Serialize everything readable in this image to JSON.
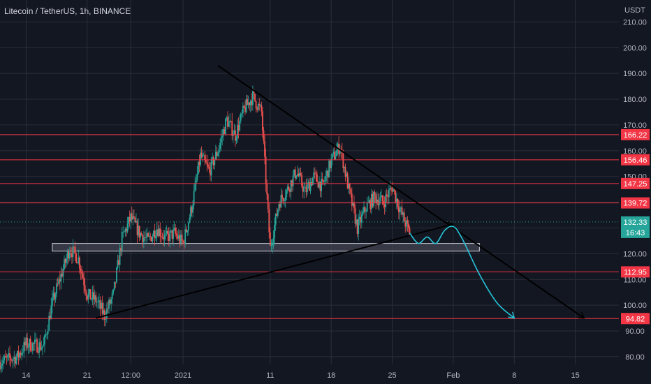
{
  "header": {
    "symbol_title": "Litecoin / TetherUS, 1h, BINANCE",
    "currency": "USDT"
  },
  "colors": {
    "background": "#131722",
    "grid": "#2a2e39",
    "candle_up": "#26a69a",
    "candle_down": "#ef5350",
    "level_line": "#f23645",
    "trend_line": "#000000",
    "projection": "#26c6da",
    "current_price": "#26a69a",
    "zone_fill": "#434651"
  },
  "chart_data": {
    "type": "candlestick",
    "timeframe": "1h",
    "y_axis": {
      "min": 77,
      "max": 212,
      "ticks": [
        80,
        90,
        100,
        110,
        120,
        130,
        140,
        150,
        160,
        170,
        180,
        190,
        200,
        210
      ],
      "tick_labels": [
        "80.00",
        "90.00",
        "100.00",
        "110.00",
        "120.00",
        "130.00",
        "140.00",
        "150.00",
        "160.00",
        "170.00",
        "180.00",
        "190.00",
        "200.00",
        "210.00"
      ]
    },
    "x_axis": {
      "start_date": "2020-12-11",
      "end_date": "2021-02-20",
      "ticks": [
        {
          "label": "14",
          "date": "2020-12-14"
        },
        {
          "label": "21",
          "date": "2020-12-21"
        },
        {
          "label": "12:00",
          "date": "2020-12-26"
        },
        {
          "label": "2021",
          "date": "2021-01-01"
        },
        {
          "label": "11",
          "date": "2021-01-11"
        },
        {
          "label": "18",
          "date": "2021-01-18"
        },
        {
          "label": "25",
          "date": "2021-01-25"
        },
        {
          "label": "Feb",
          "date": "2021-02-01"
        },
        {
          "label": "8",
          "date": "2021-02-08"
        },
        {
          "label": "15",
          "date": "2021-02-15"
        }
      ]
    },
    "price_path": [
      [
        "2020-12-11",
        78
      ],
      [
        "2020-12-13",
        80
      ],
      [
        "2020-12-14",
        85
      ],
      [
        "2020-12-16",
        84
      ],
      [
        "2020-12-17",
        101
      ],
      [
        "2020-12-19",
        122
      ],
      [
        "2020-12-20",
        118
      ],
      [
        "2020-12-21",
        104
      ],
      [
        "2020-12-22",
        102
      ],
      [
        "2020-12-23",
        96
      ],
      [
        "2020-12-24",
        104
      ],
      [
        "2020-12-25",
        126
      ],
      [
        "2020-12-26",
        134
      ],
      [
        "2020-12-27",
        128
      ],
      [
        "2020-12-28",
        125
      ],
      [
        "2020-12-29",
        130
      ],
      [
        "2020-12-30",
        126
      ],
      [
        "2020-12-31",
        128
      ],
      [
        "2021-01-01",
        124
      ],
      [
        "2021-01-02",
        138
      ],
      [
        "2021-01-03",
        158
      ],
      [
        "2021-01-04",
        152
      ],
      [
        "2021-01-05",
        160
      ],
      [
        "2021-01-06",
        172
      ],
      [
        "2021-01-07",
        166
      ],
      [
        "2021-01-08",
        176
      ],
      [
        "2021-01-09",
        181
      ],
      [
        "2021-01-10",
        175
      ],
      [
        "2021-01-11",
        122
      ],
      [
        "2021-01-12",
        140
      ],
      [
        "2021-01-13",
        145
      ],
      [
        "2021-01-14",
        152
      ],
      [
        "2021-01-15",
        144
      ],
      [
        "2021-01-16",
        150
      ],
      [
        "2021-01-17",
        146
      ],
      [
        "2021-01-18",
        156
      ],
      [
        "2021-01-19",
        162
      ],
      [
        "2021-01-20",
        145
      ],
      [
        "2021-01-21",
        130
      ],
      [
        "2021-01-22",
        138
      ],
      [
        "2021-01-23",
        142
      ],
      [
        "2021-01-24",
        140
      ],
      [
        "2021-01-25",
        146
      ],
      [
        "2021-01-26",
        136
      ],
      [
        "2021-01-27",
        128
      ]
    ],
    "horizontal_levels": [
      {
        "value": 166.22,
        "label": "166.22"
      },
      {
        "value": 156.46,
        "label": "156.46"
      },
      {
        "value": 147.25,
        "label": "147.25"
      },
      {
        "value": 139.72,
        "label": "139.72"
      },
      {
        "value": 112.95,
        "label": "112.95"
      },
      {
        "value": 94.82,
        "label": "94.82"
      }
    ],
    "current_price": {
      "value": 132.33,
      "label": "132.33",
      "countdown": "16:43"
    },
    "support_zone": {
      "from": "2020-12-17",
      "to": "2021-02-04",
      "low": 121,
      "high": 124
    },
    "trend_lines": [
      {
        "from": [
          "2021-01-05",
          193
        ],
        "to": [
          "2021-02-16",
          95
        ]
      },
      {
        "from": [
          "2020-12-22",
          95
        ],
        "to": [
          "2021-02-01",
          131.5
        ]
      }
    ],
    "projection_path": [
      [
        "2021-01-27",
        128
      ],
      [
        "2021-01-28",
        124
      ],
      [
        "2021-01-29",
        126.5
      ],
      [
        "2021-01-30",
        124
      ],
      [
        "2021-01-31",
        129
      ],
      [
        "2021-02-01",
        130.5
      ],
      [
        "2021-02-02",
        126
      ],
      [
        "2021-02-04",
        112
      ],
      [
        "2021-02-06",
        101
      ],
      [
        "2021-02-08",
        95
      ]
    ]
  }
}
